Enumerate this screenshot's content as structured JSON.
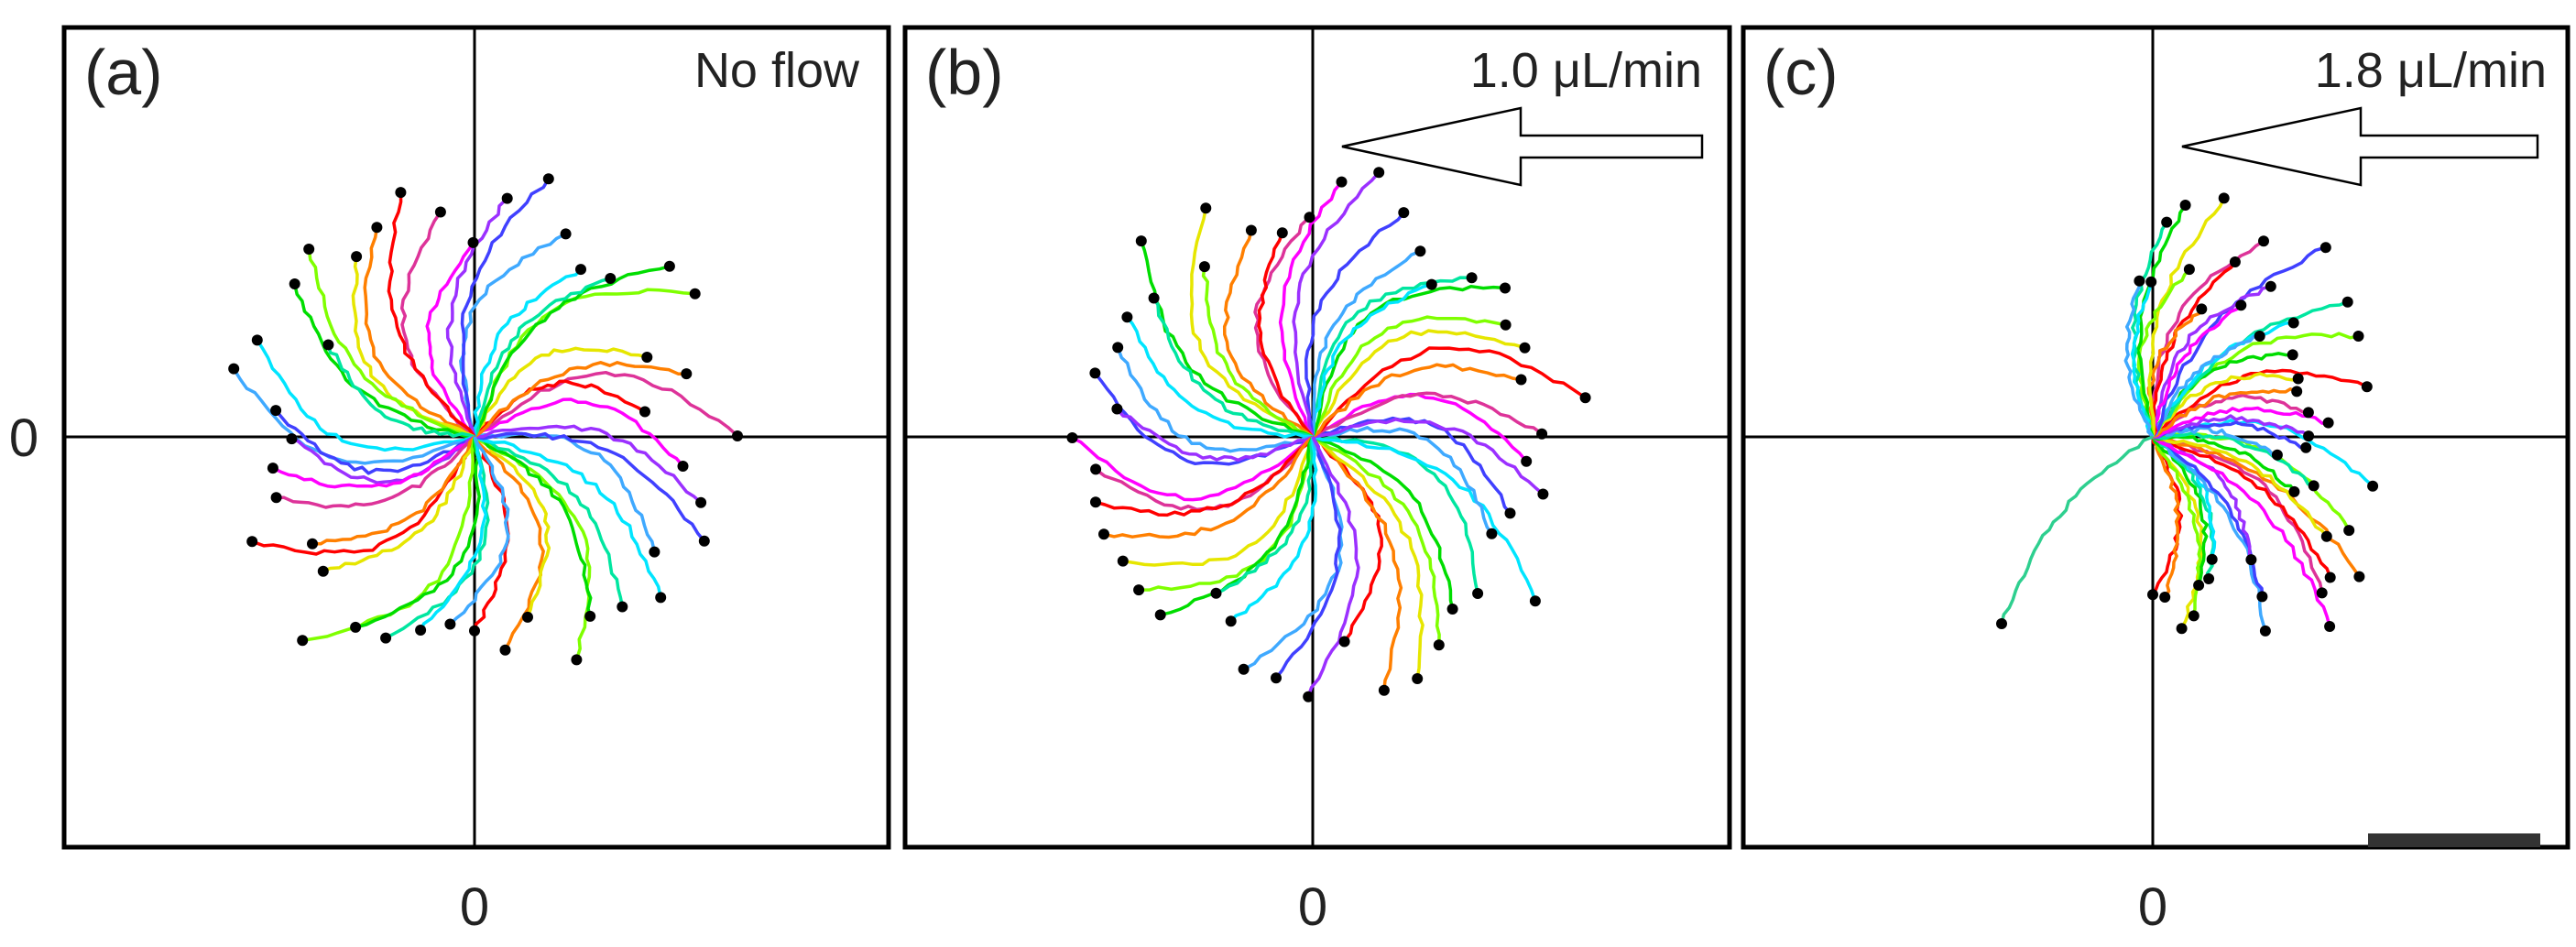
{
  "chart_data": [
    {
      "type": "scatter",
      "panel_label": "(a)",
      "annotation": "No flow",
      "flow_arrow": false,
      "y_zero_label": "0",
      "x_zero_label": "0",
      "scale_bar": false,
      "trajectories": {
        "count": 44,
        "angle_start": -90,
        "angle_step": 8.2,
        "length_base": 0.8,
        "length_jitter": 0.18,
        "bias_x": 0.0,
        "curl": 0.85,
        "seed": 7
      }
    },
    {
      "type": "scatter",
      "panel_label": "(b)",
      "annotation": "1.0 μL/min",
      "flow_arrow": true,
      "flow_direction": "left",
      "x_zero_label": "0",
      "scale_bar": false,
      "trajectories": {
        "count": 46,
        "angle_start": -85,
        "angle_step": 7.8,
        "length_base": 0.83,
        "length_jitter": 0.16,
        "bias_x": 0.05,
        "curl": 0.9,
        "seed": 19
      }
    },
    {
      "type": "scatter",
      "panel_label": "(c)",
      "annotation": "1.8 μL/min",
      "flow_arrow": true,
      "flow_direction": "left",
      "x_zero_label": "0",
      "scale_bar": true,
      "trajectories": {
        "count": 44,
        "angle_start": -90,
        "angle_step": 4.3,
        "length_base": 0.7,
        "length_jitter": 0.25,
        "bias_x": 0.0,
        "curl": 0.6,
        "seed": 31
      },
      "outlier_trajectory": {
        "end": [
          -0.55,
          -0.68
        ]
      }
    }
  ],
  "palette": [
    "#ff0000",
    "#ff7f00",
    "#e6e600",
    "#7fff00",
    "#00dd00",
    "#00e6a0",
    "#00e5ff",
    "#3fa9ff",
    "#4040ff",
    "#9b30ff",
    "#ff00ff",
    "#dd3399"
  ],
  "colors": {
    "frame": "#000000",
    "endpoint": "#000000",
    "axis": "#000000"
  }
}
